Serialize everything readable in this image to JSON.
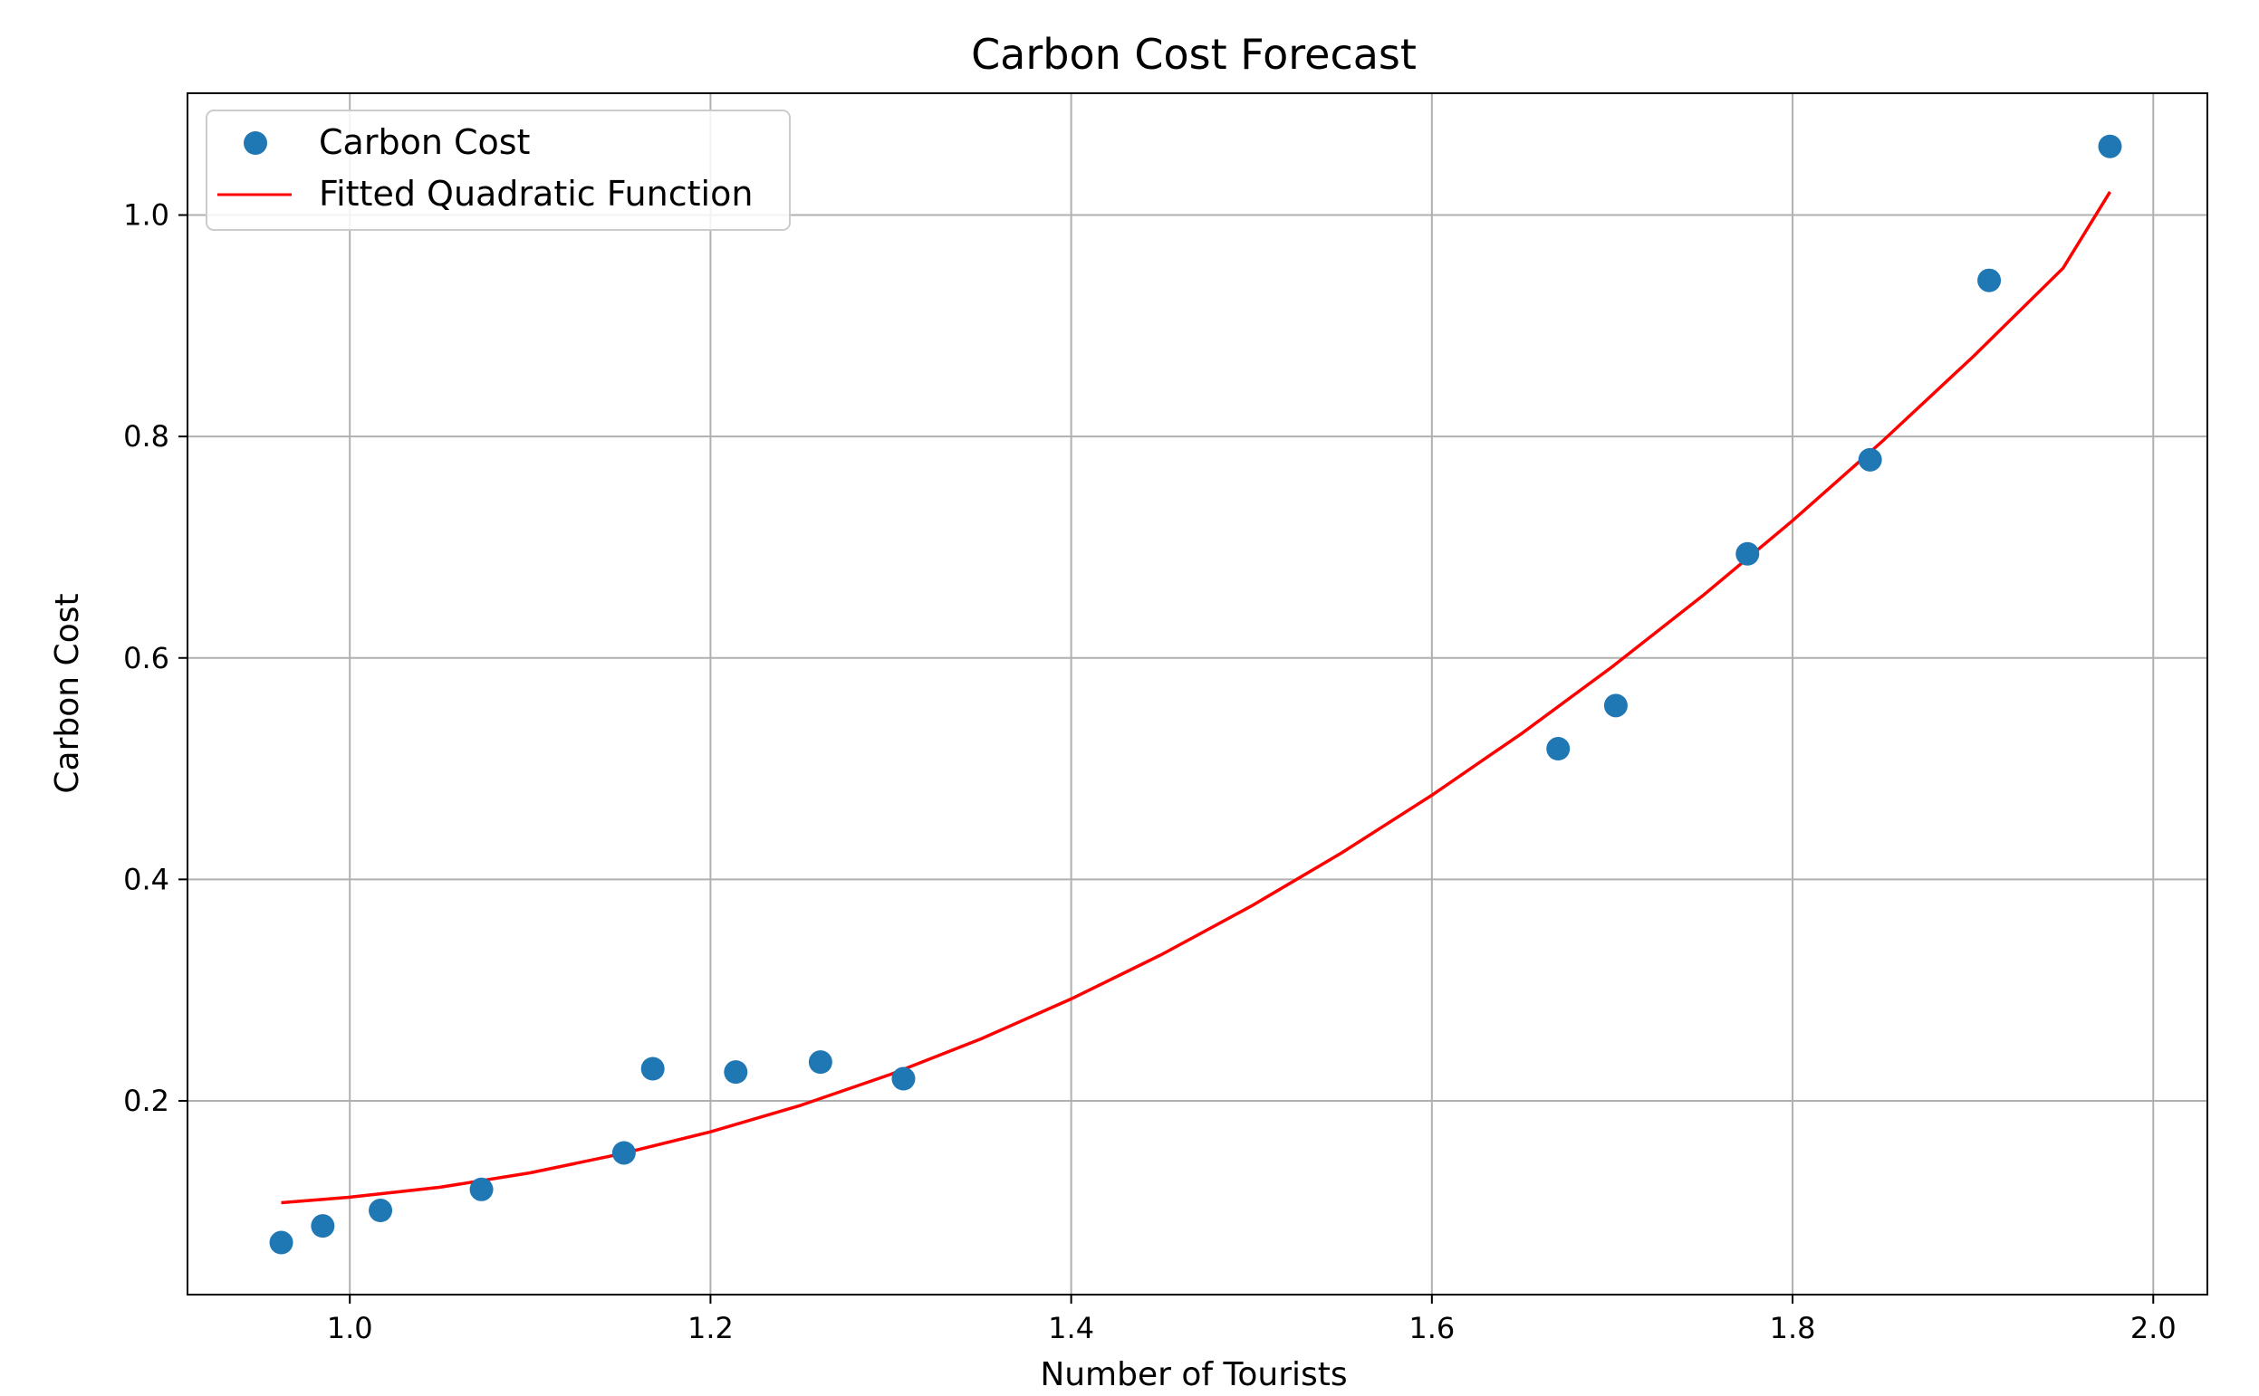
{
  "chart_data": {
    "type": "scatter",
    "title": "Carbon Cost Forecast",
    "xlabel": "Number of Tourists",
    "ylabel": "Carbon Cost",
    "xlim": [
      0.91,
      2.03
    ],
    "ylim": [
      0.025,
      1.11
    ],
    "xticks": [
      1.0,
      1.2,
      1.4,
      1.6,
      1.8,
      2.0
    ],
    "yticks": [
      0.2,
      0.4,
      0.6,
      0.8,
      1.0
    ],
    "xtick_labels": [
      "1.0",
      "1.2",
      "1.4",
      "1.6",
      "1.8",
      "2.0"
    ],
    "ytick_labels": [
      "0.2",
      "0.4",
      "0.6",
      "0.8",
      "1.0"
    ],
    "grid": true,
    "legend_position": "top-left",
    "series": [
      {
        "name": "Carbon Cost",
        "kind": "scatter",
        "color": "#1f77b4",
        "points": [
          {
            "x": 0.962,
            "y": 0.072
          },
          {
            "x": 0.985,
            "y": 0.087
          },
          {
            "x": 1.017,
            "y": 0.101
          },
          {
            "x": 1.073,
            "y": 0.12
          },
          {
            "x": 1.152,
            "y": 0.153
          },
          {
            "x": 1.168,
            "y": 0.229
          },
          {
            "x": 1.214,
            "y": 0.226
          },
          {
            "x": 1.261,
            "y": 0.235
          },
          {
            "x": 1.307,
            "y": 0.22
          },
          {
            "x": 1.67,
            "y": 0.518
          },
          {
            "x": 1.702,
            "y": 0.557
          },
          {
            "x": 1.775,
            "y": 0.694
          },
          {
            "x": 1.843,
            "y": 0.779
          },
          {
            "x": 1.909,
            "y": 0.941
          },
          {
            "x": 1.976,
            "y": 1.062
          }
        ]
      },
      {
        "name": "Fitted Quadratic Function",
        "kind": "line",
        "color": "#ff0000",
        "points": [
          {
            "x": 0.962,
            "y": 0.108
          },
          {
            "x": 1.0,
            "y": 0.113
          },
          {
            "x": 1.05,
            "y": 0.122
          },
          {
            "x": 1.1,
            "y": 0.135
          },
          {
            "x": 1.15,
            "y": 0.152
          },
          {
            "x": 1.2,
            "y": 0.172
          },
          {
            "x": 1.25,
            "y": 0.196
          },
          {
            "x": 1.3,
            "y": 0.224
          },
          {
            "x": 1.35,
            "y": 0.256
          },
          {
            "x": 1.4,
            "y": 0.292
          },
          {
            "x": 1.45,
            "y": 0.332
          },
          {
            "x": 1.5,
            "y": 0.376
          },
          {
            "x": 1.55,
            "y": 0.424
          },
          {
            "x": 1.6,
            "y": 0.476
          },
          {
            "x": 1.65,
            "y": 0.532
          },
          {
            "x": 1.7,
            "y": 0.592
          },
          {
            "x": 1.75,
            "y": 0.656
          },
          {
            "x": 1.8,
            "y": 0.724
          },
          {
            "x": 1.85,
            "y": 0.796
          },
          {
            "x": 1.9,
            "y": 0.872
          },
          {
            "x": 1.95,
            "y": 0.952
          },
          {
            "x": 1.976,
            "y": 1.021
          }
        ]
      }
    ]
  }
}
